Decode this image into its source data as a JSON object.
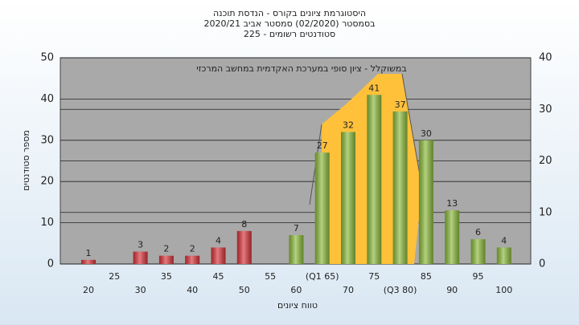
{
  "chart_data": {
    "type": "bar",
    "title": "היסטוגרמת ציונים בקורס - הנדסת תוכנה",
    "subtitle": "בסמסטר  (02/2020)  סמסטר אביב 2020/21",
    "subtitle2": "סטודנטים רשומים - 225",
    "annotation": "במשוקלל - ציון סופי במערכת האקדמית במחשב המרכזי",
    "x_label": "טווח ציונים",
    "y_label": "מספר סטודנטים",
    "categories": [
      "20",
      "25",
      "30",
      "35",
      "40",
      "45",
      "50",
      "55",
      "60",
      "(Q1 65)",
      "70",
      "75",
      "(Q3 80)",
      "85",
      "90",
      "95",
      "100"
    ],
    "values": [
      1,
      null,
      3,
      2,
      2,
      4,
      8,
      null,
      7,
      27,
      32,
      41,
      37,
      30,
      13,
      6,
      4
    ],
    "colors": [
      "#d8343a",
      "#d8343a",
      "#d8343a",
      "#d8343a",
      "#d8343a",
      "#d8343a",
      "#d8343a",
      "#d8343a",
      "#8cba3c",
      "#8cba3c",
      "#8cba3c",
      "#8cba3c",
      "#8cba3c",
      "#8cba3c",
      "#8cba3c",
      "#8cba3c",
      "#8cba3c"
    ],
    "ylim": [
      0,
      50
    ],
    "yticks": [
      0,
      10,
      20,
      30,
      40,
      50
    ],
    "y2lim": [
      0,
      40
    ],
    "y2ticks": [
      0,
      10,
      20,
      30,
      40
    ],
    "grid": true
  }
}
